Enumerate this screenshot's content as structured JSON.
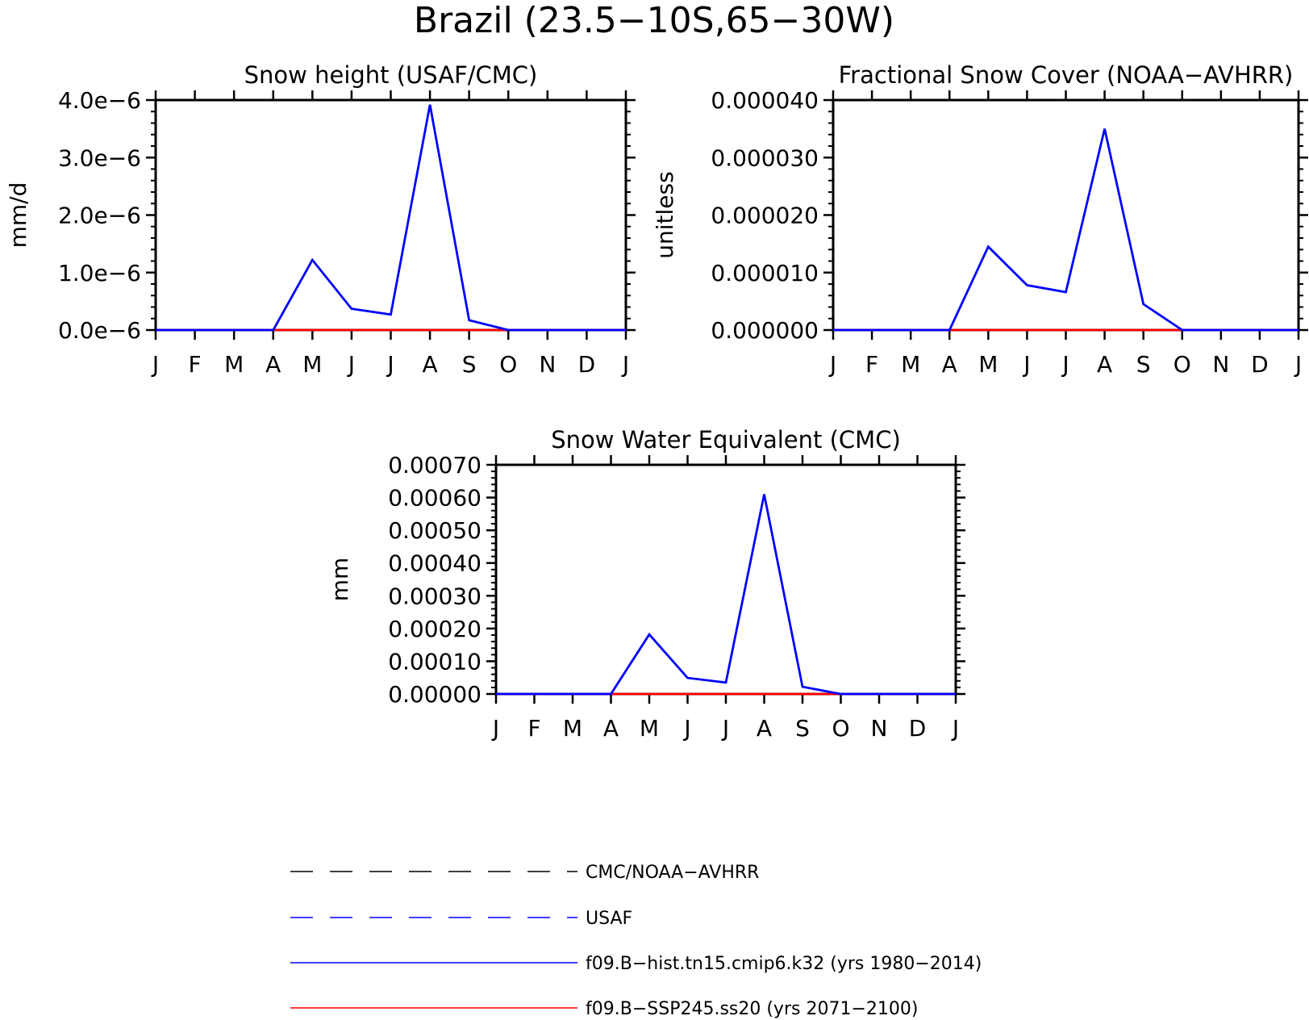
{
  "title": "Brazil (23.5−10S,65−30W)",
  "months": [
    "J",
    "F",
    "M",
    "A",
    "M",
    "J",
    "J",
    "A",
    "S",
    "O",
    "N",
    "D",
    "J"
  ],
  "chart_data": [
    {
      "type": "line",
      "title": "Snow height (USAF/CMC)",
      "ylabel": "mm/d",
      "xlabel": "",
      "ylim": [
        0,
        4e-06
      ],
      "yticks": [
        "0.0e−6",
        "1.0e−6",
        "2.0e−6",
        "3.0e−6",
        "4.0e−6"
      ],
      "x": [
        "J",
        "F",
        "M",
        "A",
        "M",
        "J",
        "J",
        "A",
        "S",
        "O",
        "N",
        "D",
        "J"
      ],
      "series": [
        {
          "name": "f09.B−hist.tn15.cmip6.k32 (yrs 1980−2014)",
          "color": "#0000ff",
          "values": [
            0,
            0,
            0,
            0,
            1.22e-06,
            3.7e-07,
            2.7e-07,
            3.92e-06,
            1.7e-07,
            0,
            0,
            0,
            0
          ]
        },
        {
          "name": "f09.B−SSP245.ss20 (yrs 2071−2100)",
          "color": "#ff0000",
          "values": [
            0,
            0,
            0,
            0,
            0,
            0,
            0,
            0,
            0,
            0,
            0,
            0,
            0
          ]
        }
      ]
    },
    {
      "type": "line",
      "title": "Fractional Snow Cover (NOAA−AVHRR)",
      "ylabel": "unitless",
      "xlabel": "",
      "ylim": [
        0,
        4e-05
      ],
      "yticks": [
        "0.000000",
        "0.000010",
        "0.000020",
        "0.000030",
        "0.000040"
      ],
      "x": [
        "J",
        "F",
        "M",
        "A",
        "M",
        "J",
        "J",
        "A",
        "S",
        "O",
        "N",
        "D",
        "J"
      ],
      "series": [
        {
          "name": "f09.B−hist.tn15.cmip6.k32 (yrs 1980−2014)",
          "color": "#0000ff",
          "values": [
            0,
            0,
            0,
            0,
            1.45e-05,
            7.8e-06,
            6.6e-06,
            3.5e-05,
            4.5e-06,
            0,
            0,
            0,
            0
          ]
        },
        {
          "name": "f09.B−SSP245.ss20 (yrs 2071−2100)",
          "color": "#ff0000",
          "values": [
            0,
            0,
            0,
            0,
            0,
            0,
            0,
            0,
            0,
            0,
            0,
            0,
            0
          ]
        }
      ]
    },
    {
      "type": "line",
      "title": "Snow Water Equivalent (CMC)",
      "ylabel": "mm",
      "xlabel": "",
      "ylim": [
        0,
        0.0007
      ],
      "yticks": [
        "0.00000",
        "0.00010",
        "0.00020",
        "0.00030",
        "0.00040",
        "0.00050",
        "0.00060",
        "0.00070"
      ],
      "x": [
        "J",
        "F",
        "M",
        "A",
        "M",
        "J",
        "J",
        "A",
        "S",
        "O",
        "N",
        "D",
        "J"
      ],
      "series": [
        {
          "name": "f09.B−hist.tn15.cmip6.k32 (yrs 1980−2014)",
          "color": "#0000ff",
          "values": [
            0,
            0,
            0,
            0,
            0.000182,
            4.9e-05,
            3.5e-05,
            0.00061,
            2.2e-05,
            0,
            0,
            0,
            0
          ]
        },
        {
          "name": "f09.B−SSP245.ss20 (yrs 2071−2100)",
          "color": "#ff0000",
          "values": [
            0,
            0,
            0,
            0,
            0,
            0,
            0,
            0,
            0,
            0,
            0,
            0,
            0
          ]
        }
      ]
    }
  ],
  "legend": [
    {
      "label": "CMC/NOAA−AVHRR",
      "color": "#000000",
      "style": "dashed"
    },
    {
      "label": "USAF",
      "color": "#0000ff",
      "style": "dashed"
    },
    {
      "label": "f09.B−hist.tn15.cmip6.k32 (yrs 1980−2014)",
      "color": "#0000ff",
      "style": "solid"
    },
    {
      "label": "f09.B−SSP245.ss20 (yrs 2071−2100)",
      "color": "#ff0000",
      "style": "solid"
    }
  ]
}
